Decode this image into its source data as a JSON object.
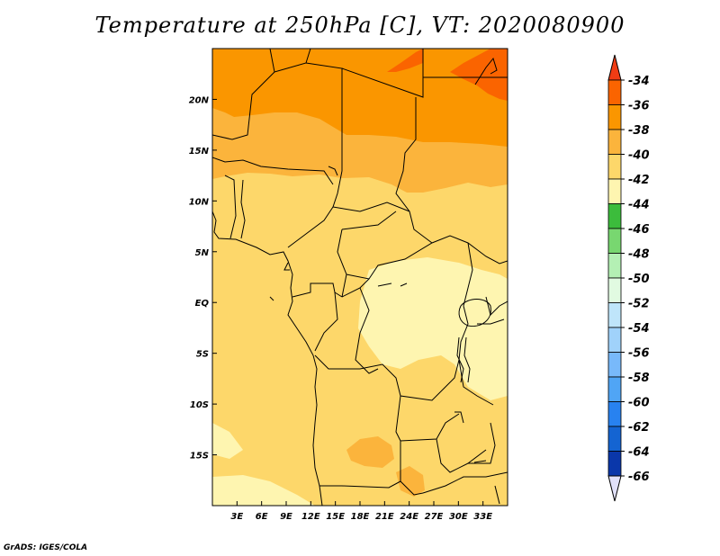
{
  "title": "Temperature at 250hPa [C], VT: 2020080900",
  "credit": "GrADS: IGES/COLA",
  "map": {
    "lon_range": [
      0,
      36
    ],
    "lat_range": [
      -20,
      25
    ],
    "lon_ticks": [
      {
        "lon": 3,
        "label": "3E"
      },
      {
        "lon": 6,
        "label": "6E"
      },
      {
        "lon": 9,
        "label": "9E"
      },
      {
        "lon": 12,
        "label": "12E"
      },
      {
        "lon": 15,
        "label": "15E"
      },
      {
        "lon": 18,
        "label": "18E"
      },
      {
        "lon": 21,
        "label": "21E"
      },
      {
        "lon": 24,
        "label": "24E"
      },
      {
        "lon": 27,
        "label": "27E"
      },
      {
        "lon": 30,
        "label": "30E"
      },
      {
        "lon": 33,
        "label": "33E"
      }
    ],
    "lat_ticks": [
      {
        "lat": 20,
        "label": "20N"
      },
      {
        "lat": 15,
        "label": "15N"
      },
      {
        "lat": 10,
        "label": "10N"
      },
      {
        "lat": 5,
        "label": "5N"
      },
      {
        "lat": 0,
        "label": "EQ"
      },
      {
        "lat": -5,
        "label": "5S"
      },
      {
        "lat": -10,
        "label": "10S"
      },
      {
        "lat": -15,
        "label": "15S"
      }
    ]
  },
  "colorbar": {
    "labels": [
      "-34",
      "-36",
      "-38",
      "-40",
      "-42",
      "-44",
      "-46",
      "-48",
      "-50",
      "-52",
      "-54",
      "-56",
      "-58",
      "-60",
      "-62",
      "-64",
      "-66"
    ],
    "colors": {
      "above_-34": "#f03c14",
      "-36_-34": "#fa6400",
      "-38_-36": "#fa9600",
      "-40_-38": "#fbb43c",
      "-42_-40": "#fdd76a",
      "-44_-42": "#fef5b0",
      "-46_-44": "#3cbc3c",
      "-48_-46": "#78d770",
      "-50_-48": "#b4f0b4",
      "-52_-50": "#e1fae1",
      "-54_-52": "#bfe5fa",
      "-56_-54": "#a0d2fa",
      "-58_-56": "#78b9fa",
      "-60_-58": "#50a5f5",
      "-62_-60": "#2882f0",
      "-64_-62": "#1464d2",
      "-66_-64": "#0a37aa",
      "below_-66": "#00147d",
      "underflow_triangle": "#e1e1fa"
    }
  },
  "field_regions": [
    {
      "name": "lt-36",
      "color_key": "-36_-34"
    },
    {
      "name": "-38to-36",
      "color_key": "-38_-36"
    },
    {
      "name": "-40to-38",
      "color_key": "-40_-38"
    },
    {
      "name": "-42to-40",
      "color_key": "-42_-40"
    },
    {
      "name": "-44to-42",
      "color_key": "-44_-42"
    }
  ]
}
